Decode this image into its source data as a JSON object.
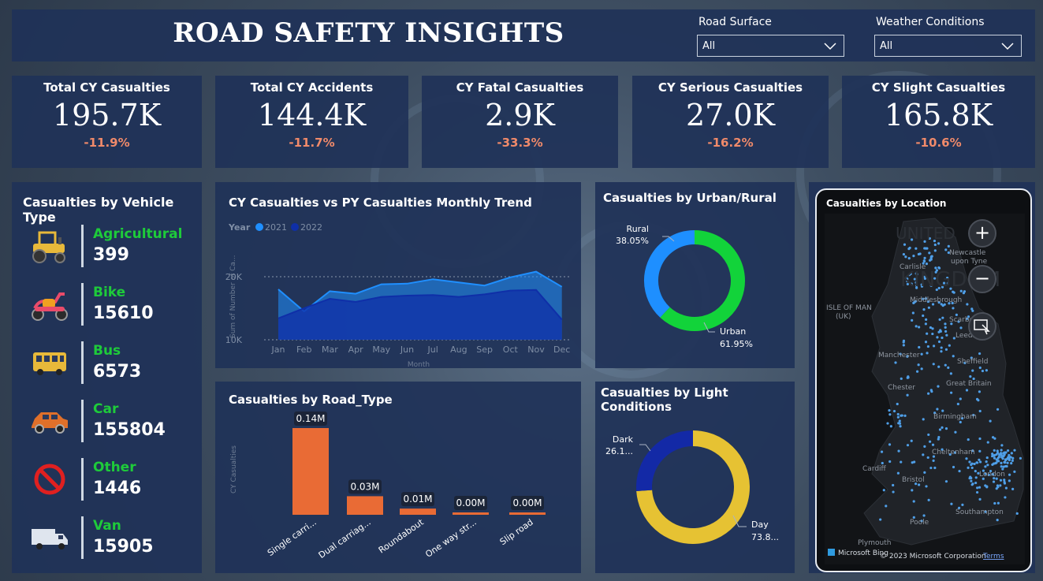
{
  "header": {
    "title": "ROAD SAFETY INSIGHTS",
    "road_surface_label": "Road Surface",
    "road_surface_value": "All",
    "weather_label": "Weather Conditions",
    "weather_value": "All"
  },
  "kpis": [
    {
      "label": "Total CY Casualties",
      "value": "195.7K",
      "change": "-11.9%"
    },
    {
      "label": "Total CY Accidents",
      "value": "144.4K",
      "change": "-11.7%"
    },
    {
      "label": "CY Fatal Casualties",
      "value": "2.9K",
      "change": "-33.3%"
    },
    {
      "label": "CY Serious Casualties",
      "value": "27.0K",
      "change": "-16.2%"
    },
    {
      "label": "CY Slight Casualties",
      "value": "165.8K",
      "change": "-10.6%"
    }
  ],
  "vehicles": {
    "title": "Casualties by Vehicle Type",
    "items": [
      {
        "name": "Agricultural",
        "value": "399",
        "icon": "tractor-icon"
      },
      {
        "name": "Bike",
        "value": "15610",
        "icon": "scooter-icon"
      },
      {
        "name": "Bus",
        "value": "6573",
        "icon": "bus-icon"
      },
      {
        "name": "Car",
        "value": "155804",
        "icon": "car-icon"
      },
      {
        "name": "Other",
        "value": "1446",
        "icon": "no-entry-icon"
      },
      {
        "name": "Van",
        "value": "15905",
        "icon": "van-icon"
      }
    ]
  },
  "trend": {
    "title": "CY Casualties vs PY Casualties Monthly Trend",
    "legend_title": "Year",
    "legend_2021": "2021",
    "legend_2022": "2022",
    "ylabel": "Sum of Number of Ca...",
    "xlabel": "Month",
    "tick_20k": "20K",
    "tick_10k": "10K"
  },
  "road_type": {
    "title": "Casualties by Road_Type",
    "ylabel": "CY Casualties"
  },
  "urban": {
    "title": "Casualties by Urban/Rural",
    "rural_label": "Rural",
    "rural_pct": "38.05%",
    "urban_label": "Urban",
    "urban_pct": "61.95%"
  },
  "light": {
    "title": "Casualties by Light Conditions",
    "dark_label": "Dark",
    "dark_pct": "26.1...",
    "day_label": "Day",
    "day_pct": "73.8..."
  },
  "map": {
    "title": "Casualties by Location",
    "labels": [
      "UNITED",
      "KINGDOM",
      "Newcastle",
      "upon Tyne",
      "Carlisle",
      "ISLE OF MAN",
      "(UK)",
      "Middlesbrough",
      "Scarbor",
      "Leeds",
      "Manchester",
      "Sheffield",
      "Chester",
      "Great Britain",
      "Birmingham",
      "Cheltenham",
      "Cardiff",
      "Bristol",
      "London",
      "Poole",
      "Southampton",
      "Plymouth"
    ],
    "attribution": "© 2023 Microsoft Corporation",
    "bing": "Microsoft Bing",
    "terms": "Terms"
  },
  "colors": {
    "cy_line": "#1f8fff",
    "py_line": "#0f2fa8",
    "bar": "#e96b35",
    "urban": "#12d33a",
    "rural": "#1e8fff",
    "day": "#e6c233",
    "dark": "#1329a6",
    "positive_name": "#1ecb3a",
    "negative_change": "#f08a6a"
  },
  "chart_data": [
    {
      "type": "area",
      "title": "CY Casualties vs PY Casualties Monthly Trend",
      "xlabel": "Month",
      "ylabel": "Sum of Number of Ca...",
      "categories": [
        "Jan",
        "Feb",
        "Mar",
        "Apr",
        "May",
        "Jun",
        "Jul",
        "Aug",
        "Sep",
        "Oct",
        "Nov",
        "Dec"
      ],
      "ylim": [
        10000,
        22000
      ],
      "series": [
        {
          "name": "2021",
          "values": [
            18000,
            14500,
            17700,
            17300,
            18800,
            18900,
            19600,
            19100,
            18600,
            19900,
            20800,
            18400
          ]
        },
        {
          "name": "2022",
          "values": [
            13400,
            15000,
            16500,
            16000,
            16800,
            17000,
            17100,
            16800,
            17200,
            17800,
            17900,
            13200
          ]
        }
      ],
      "legend": "top-left"
    },
    {
      "type": "bar",
      "title": "Casualties by Road_Type",
      "ylabel": "CY Casualties",
      "categories": [
        "Single carri...",
        "Dual carriag...",
        "Roundabout",
        "One way str...",
        "Slip road"
      ],
      "values": [
        0.14,
        0.03,
        0.01,
        0.0,
        0.0
      ],
      "data_labels": [
        "0.14M",
        "0.03M",
        "0.01M",
        "0.00M",
        "0.00M"
      ],
      "unit": "M"
    },
    {
      "type": "pie",
      "title": "Casualties by Urban/Rural",
      "categories": [
        "Urban",
        "Rural"
      ],
      "values": [
        61.95,
        38.05
      ]
    },
    {
      "type": "pie",
      "title": "Casualties by Light Conditions",
      "categories": [
        "Day",
        "Dark"
      ],
      "values": [
        73.9,
        26.1
      ]
    }
  ]
}
